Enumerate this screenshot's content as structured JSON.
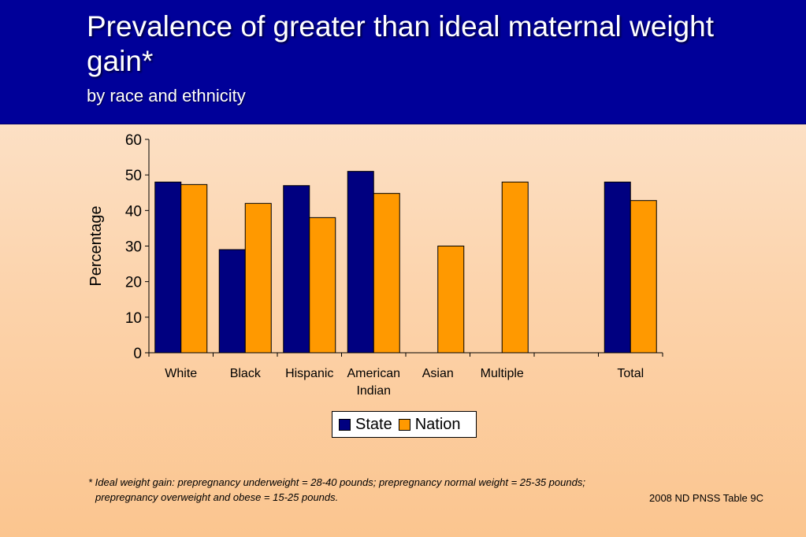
{
  "slide": {
    "title": "Prevalence of greater than ideal maternal weight gain*",
    "subtitle": "by race and ethnicity",
    "footnote_line1": "*  Ideal weight gain: prepregnancy underweight = 28-40 pounds; prepregnancy normal weight = 25-35 pounds;",
    "footnote_line2": "prepregnancy overweight and obese = 15-25 pounds.",
    "source": "2008 ND PNSS Table 9C"
  },
  "colors": {
    "header_bg": "#000099",
    "state": "#000080",
    "nation": "#FF9900"
  },
  "chart_data": {
    "type": "bar",
    "categories": [
      "White",
      "Black",
      "Hispanic",
      "American Indian",
      "Asian",
      "Multiple",
      "",
      "Total"
    ],
    "category_lines": [
      [
        "White"
      ],
      [
        "Black"
      ],
      [
        "Hispanic"
      ],
      [
        "American",
        "Indian"
      ],
      [
        "Asian"
      ],
      [
        "Multiple"
      ],
      [
        ""
      ],
      [
        "Total"
      ]
    ],
    "series": [
      {
        "name": "State",
        "color": "#000080",
        "values": [
          48,
          29,
          47,
          51,
          null,
          null,
          null,
          48
        ]
      },
      {
        "name": "Nation",
        "color": "#FF9900",
        "values": [
          47.3,
          42,
          38,
          44.8,
          30,
          48,
          null,
          42.8
        ]
      }
    ],
    "title": "",
    "xlabel": "",
    "ylabel": "Percentage",
    "ylim": [
      0,
      60
    ],
    "yticks": [
      0,
      10,
      20,
      30,
      40,
      50,
      60
    ],
    "grid": false,
    "legend": "bottom-center"
  }
}
